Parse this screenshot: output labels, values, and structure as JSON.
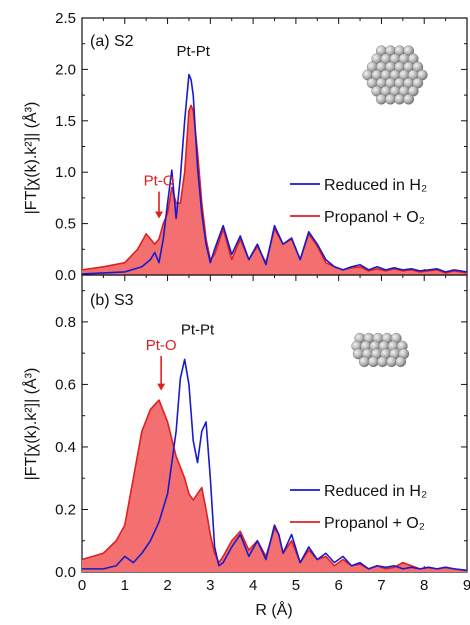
{
  "colors": {
    "reduced": "#1a1acc",
    "propanol": "#e02020",
    "fill": "#f47070",
    "axis": "#111111",
    "sphere": "#b8b8b8"
  },
  "chart_data": [
    {
      "type": "area",
      "panel_label": "(a) S2",
      "ylabel": "|FT[χ(k).k²]| (Å³)",
      "xlim": [
        0,
        9
      ],
      "ylim": [
        0,
        2.5
      ],
      "yticks": [
        "0.0",
        "0.5",
        "1.0",
        "1.5",
        "2.0",
        "2.5"
      ],
      "annotations": [
        {
          "text": "Pt-Pt",
          "x": 2.6,
          "y": 2.13,
          "color": "#111111"
        },
        {
          "text": "Pt-O",
          "x": 1.8,
          "y": 0.87,
          "color": "#e02020",
          "arrow_to": 0.55
        }
      ],
      "series": [
        {
          "name": "Reduced in H₂",
          "style": "line",
          "x": [
            0,
            0.5,
            1.0,
            1.4,
            1.6,
            1.7,
            1.8,
            1.9,
            2.0,
            2.1,
            2.2,
            2.3,
            2.4,
            2.5,
            2.55,
            2.6,
            2.7,
            2.8,
            2.9,
            3.0,
            3.1,
            3.3,
            3.5,
            3.7,
            3.9,
            4.1,
            4.3,
            4.5,
            4.7,
            4.9,
            5.1,
            5.3,
            5.5,
            5.7,
            5.9,
            6.1,
            6.3,
            6.5,
            6.7,
            6.9,
            7.1,
            7.3,
            7.5,
            7.7,
            7.9,
            8.1,
            8.3,
            8.5,
            8.7,
            9.0
          ],
          "y": [
            0.01,
            0.02,
            0.03,
            0.08,
            0.15,
            0.22,
            0.12,
            0.35,
            0.7,
            1.02,
            0.55,
            0.95,
            1.5,
            1.95,
            1.9,
            1.75,
            1.05,
            0.6,
            0.3,
            0.12,
            0.25,
            0.48,
            0.2,
            0.38,
            0.15,
            0.3,
            0.1,
            0.48,
            0.3,
            0.36,
            0.15,
            0.42,
            0.3,
            0.15,
            0.08,
            0.05,
            0.08,
            0.1,
            0.05,
            0.08,
            0.05,
            0.07,
            0.05,
            0.06,
            0.04,
            0.05,
            0.06,
            0.03,
            0.05,
            0.03
          ]
        },
        {
          "name": "Propanol + O₂",
          "style": "area",
          "x": [
            0,
            0.5,
            1.0,
            1.3,
            1.5,
            1.7,
            1.8,
            1.9,
            2.0,
            2.1,
            2.2,
            2.3,
            2.4,
            2.5,
            2.55,
            2.6,
            2.7,
            2.8,
            2.9,
            3.0,
            3.1,
            3.3,
            3.5,
            3.7,
            3.9,
            4.1,
            4.3,
            4.5,
            4.7,
            4.9,
            5.1,
            5.3,
            5.5,
            5.7,
            5.9,
            6.1,
            6.3,
            6.5,
            6.7,
            6.9,
            7.1,
            7.3,
            7.5,
            7.7,
            7.9,
            8.1,
            8.3,
            8.5,
            8.7,
            9.0
          ],
          "y": [
            0.05,
            0.08,
            0.12,
            0.25,
            0.4,
            0.3,
            0.35,
            0.5,
            0.6,
            0.85,
            0.7,
            0.7,
            1.0,
            1.6,
            1.65,
            1.6,
            1.2,
            0.7,
            0.35,
            0.15,
            0.2,
            0.45,
            0.15,
            0.35,
            0.15,
            0.28,
            0.12,
            0.45,
            0.3,
            0.35,
            0.15,
            0.4,
            0.28,
            0.12,
            0.08,
            0.05,
            0.07,
            0.08,
            0.04,
            0.06,
            0.04,
            0.06,
            0.04,
            0.05,
            0.03,
            0.04,
            0.05,
            0.02,
            0.04,
            0.02
          ]
        }
      ]
    },
    {
      "type": "area",
      "panel_label": "(b) S3",
      "ylabel": "|FT[χ(k).k²]| (Å³)",
      "xlabel": "R (Å)",
      "xlim": [
        0,
        9
      ],
      "ylim": [
        0,
        0.95
      ],
      "xticks": [
        "0",
        "1",
        "2",
        "3",
        "4",
        "5",
        "6",
        "7",
        "8",
        "9"
      ],
      "yticks": [
        "0.0",
        "0.2",
        "0.4",
        "0.6",
        "0.8"
      ],
      "annotations": [
        {
          "text": "Pt-Pt",
          "x": 2.7,
          "y": 0.76,
          "color": "#111111"
        },
        {
          "text": "Pt-O",
          "x": 1.85,
          "y": 0.71,
          "color": "#e02020",
          "arrow_to": 0.58
        }
      ],
      "series": [
        {
          "name": "Reduced in H₂",
          "style": "line",
          "x": [
            0,
            0.5,
            0.8,
            1.0,
            1.2,
            1.4,
            1.6,
            1.8,
            2.0,
            2.2,
            2.3,
            2.4,
            2.5,
            2.6,
            2.7,
            2.8,
            2.9,
            3.0,
            3.1,
            3.2,
            3.3,
            3.5,
            3.7,
            3.9,
            4.1,
            4.3,
            4.5,
            4.6,
            4.7,
            4.9,
            5.1,
            5.3,
            5.5,
            5.7,
            5.9,
            6.1,
            6.3,
            6.5,
            6.7,
            6.9,
            7.1,
            7.3,
            7.5,
            7.7,
            7.9,
            8.1,
            8.3,
            8.5,
            8.7,
            9.0
          ],
          "y": [
            0.01,
            0.01,
            0.02,
            0.05,
            0.03,
            0.06,
            0.1,
            0.16,
            0.25,
            0.45,
            0.62,
            0.68,
            0.6,
            0.42,
            0.35,
            0.45,
            0.48,
            0.3,
            0.08,
            0.02,
            0.03,
            0.08,
            0.12,
            0.05,
            0.1,
            0.04,
            0.15,
            0.12,
            0.06,
            0.12,
            0.03,
            0.08,
            0.04,
            0.06,
            0.03,
            0.05,
            0.02,
            0.03,
            0.01,
            0.02,
            0.015,
            0.02,
            0.01,
            0.015,
            0.01,
            0.015,
            0.01,
            0.015,
            0.01,
            0.005
          ]
        },
        {
          "name": "Propanol + O₂",
          "style": "area",
          "x": [
            0,
            0.5,
            0.8,
            1.0,
            1.2,
            1.4,
            1.6,
            1.8,
            2.0,
            2.2,
            2.4,
            2.5,
            2.6,
            2.7,
            2.8,
            2.9,
            3.0,
            3.1,
            3.2,
            3.3,
            3.5,
            3.7,
            3.9,
            4.1,
            4.3,
            4.5,
            4.6,
            4.7,
            4.9,
            5.1,
            5.3,
            5.5,
            5.7,
            5.9,
            6.1,
            6.3,
            6.5,
            6.7,
            6.9,
            7.1,
            7.3,
            7.5,
            7.7,
            7.9,
            8.1,
            8.3,
            8.5,
            8.7,
            9.0
          ],
          "y": [
            0.04,
            0.06,
            0.1,
            0.15,
            0.3,
            0.45,
            0.52,
            0.55,
            0.48,
            0.37,
            0.3,
            0.25,
            0.23,
            0.25,
            0.27,
            0.2,
            0.12,
            0.06,
            0.03,
            0.05,
            0.1,
            0.13,
            0.07,
            0.1,
            0.05,
            0.14,
            0.12,
            0.06,
            0.1,
            0.03,
            0.07,
            0.04,
            0.05,
            0.02,
            0.04,
            0.02,
            0.025,
            0.01,
            0.02,
            0.01,
            0.015,
            0.03,
            0.02,
            0.01,
            0.015,
            0.01,
            0.015,
            0.01,
            0.005
          ]
        }
      ]
    }
  ]
}
